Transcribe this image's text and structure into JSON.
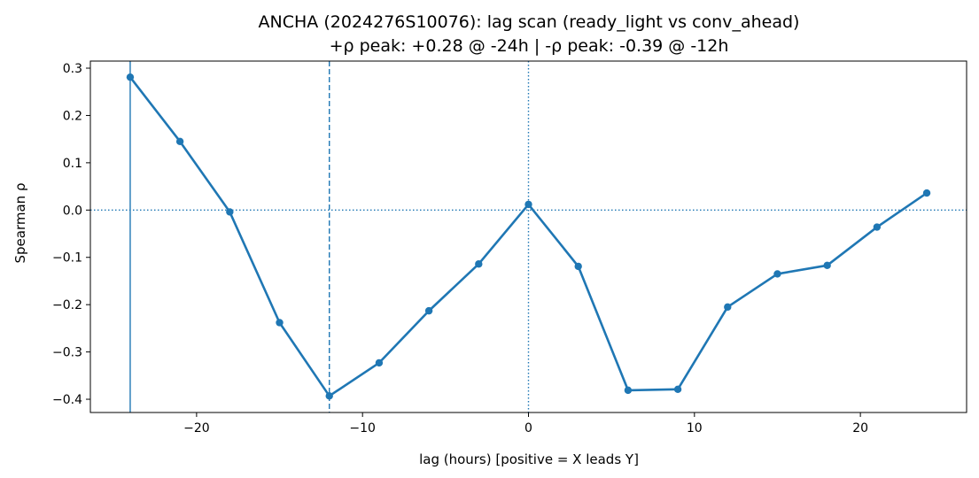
{
  "chart_data": {
    "type": "line",
    "title": "ANCHA (2024276S10076): lag scan (ready_light vs conv_ahead)",
    "subtitle": "+ρ peak: +0.28 @ -24h | -ρ peak: -0.39 @ -12h",
    "xlabel": "lag (hours) [positive = X leads Y]",
    "ylabel": "Spearman ρ",
    "xlim": [
      -26.4,
      26.4
    ],
    "ylim": [
      -0.428,
      0.315
    ],
    "x_ticks": [
      -20,
      -10,
      0,
      10,
      20
    ],
    "x_tick_labels": [
      "−20",
      "−10",
      "0",
      "10",
      "20"
    ],
    "y_ticks": [
      0.3,
      0.2,
      0.1,
      0.0,
      -0.1,
      -0.2,
      -0.3,
      -0.4
    ],
    "y_tick_labels": [
      "0.3",
      "0.2",
      "0.1",
      "0.0",
      "−0.1",
      "−0.2",
      "−0.3",
      "−0.4"
    ],
    "grid": false,
    "color": "#1f77b4",
    "series": [
      {
        "x": [
          -24,
          -21,
          -18,
          -15,
          -12,
          -9,
          -6,
          -3,
          0,
          3,
          6,
          9,
          12,
          15,
          18,
          21,
          24
        ],
        "values": [
          0.281,
          0.145,
          -0.004,
          -0.238,
          -0.393,
          -0.323,
          -0.213,
          -0.114,
          0.012,
          -0.119,
          -0.381,
          -0.379,
          -0.205,
          -0.135,
          -0.117,
          -0.036,
          0.036
        ]
      }
    ],
    "reference_lines": [
      {
        "orientation": "vertical",
        "value": -24,
        "style": "solid"
      },
      {
        "orientation": "vertical",
        "value": -12,
        "style": "dashed"
      },
      {
        "orientation": "vertical",
        "value": 0,
        "style": "dotted"
      },
      {
        "orientation": "horizontal",
        "value": 0,
        "style": "dotted"
      }
    ]
  }
}
